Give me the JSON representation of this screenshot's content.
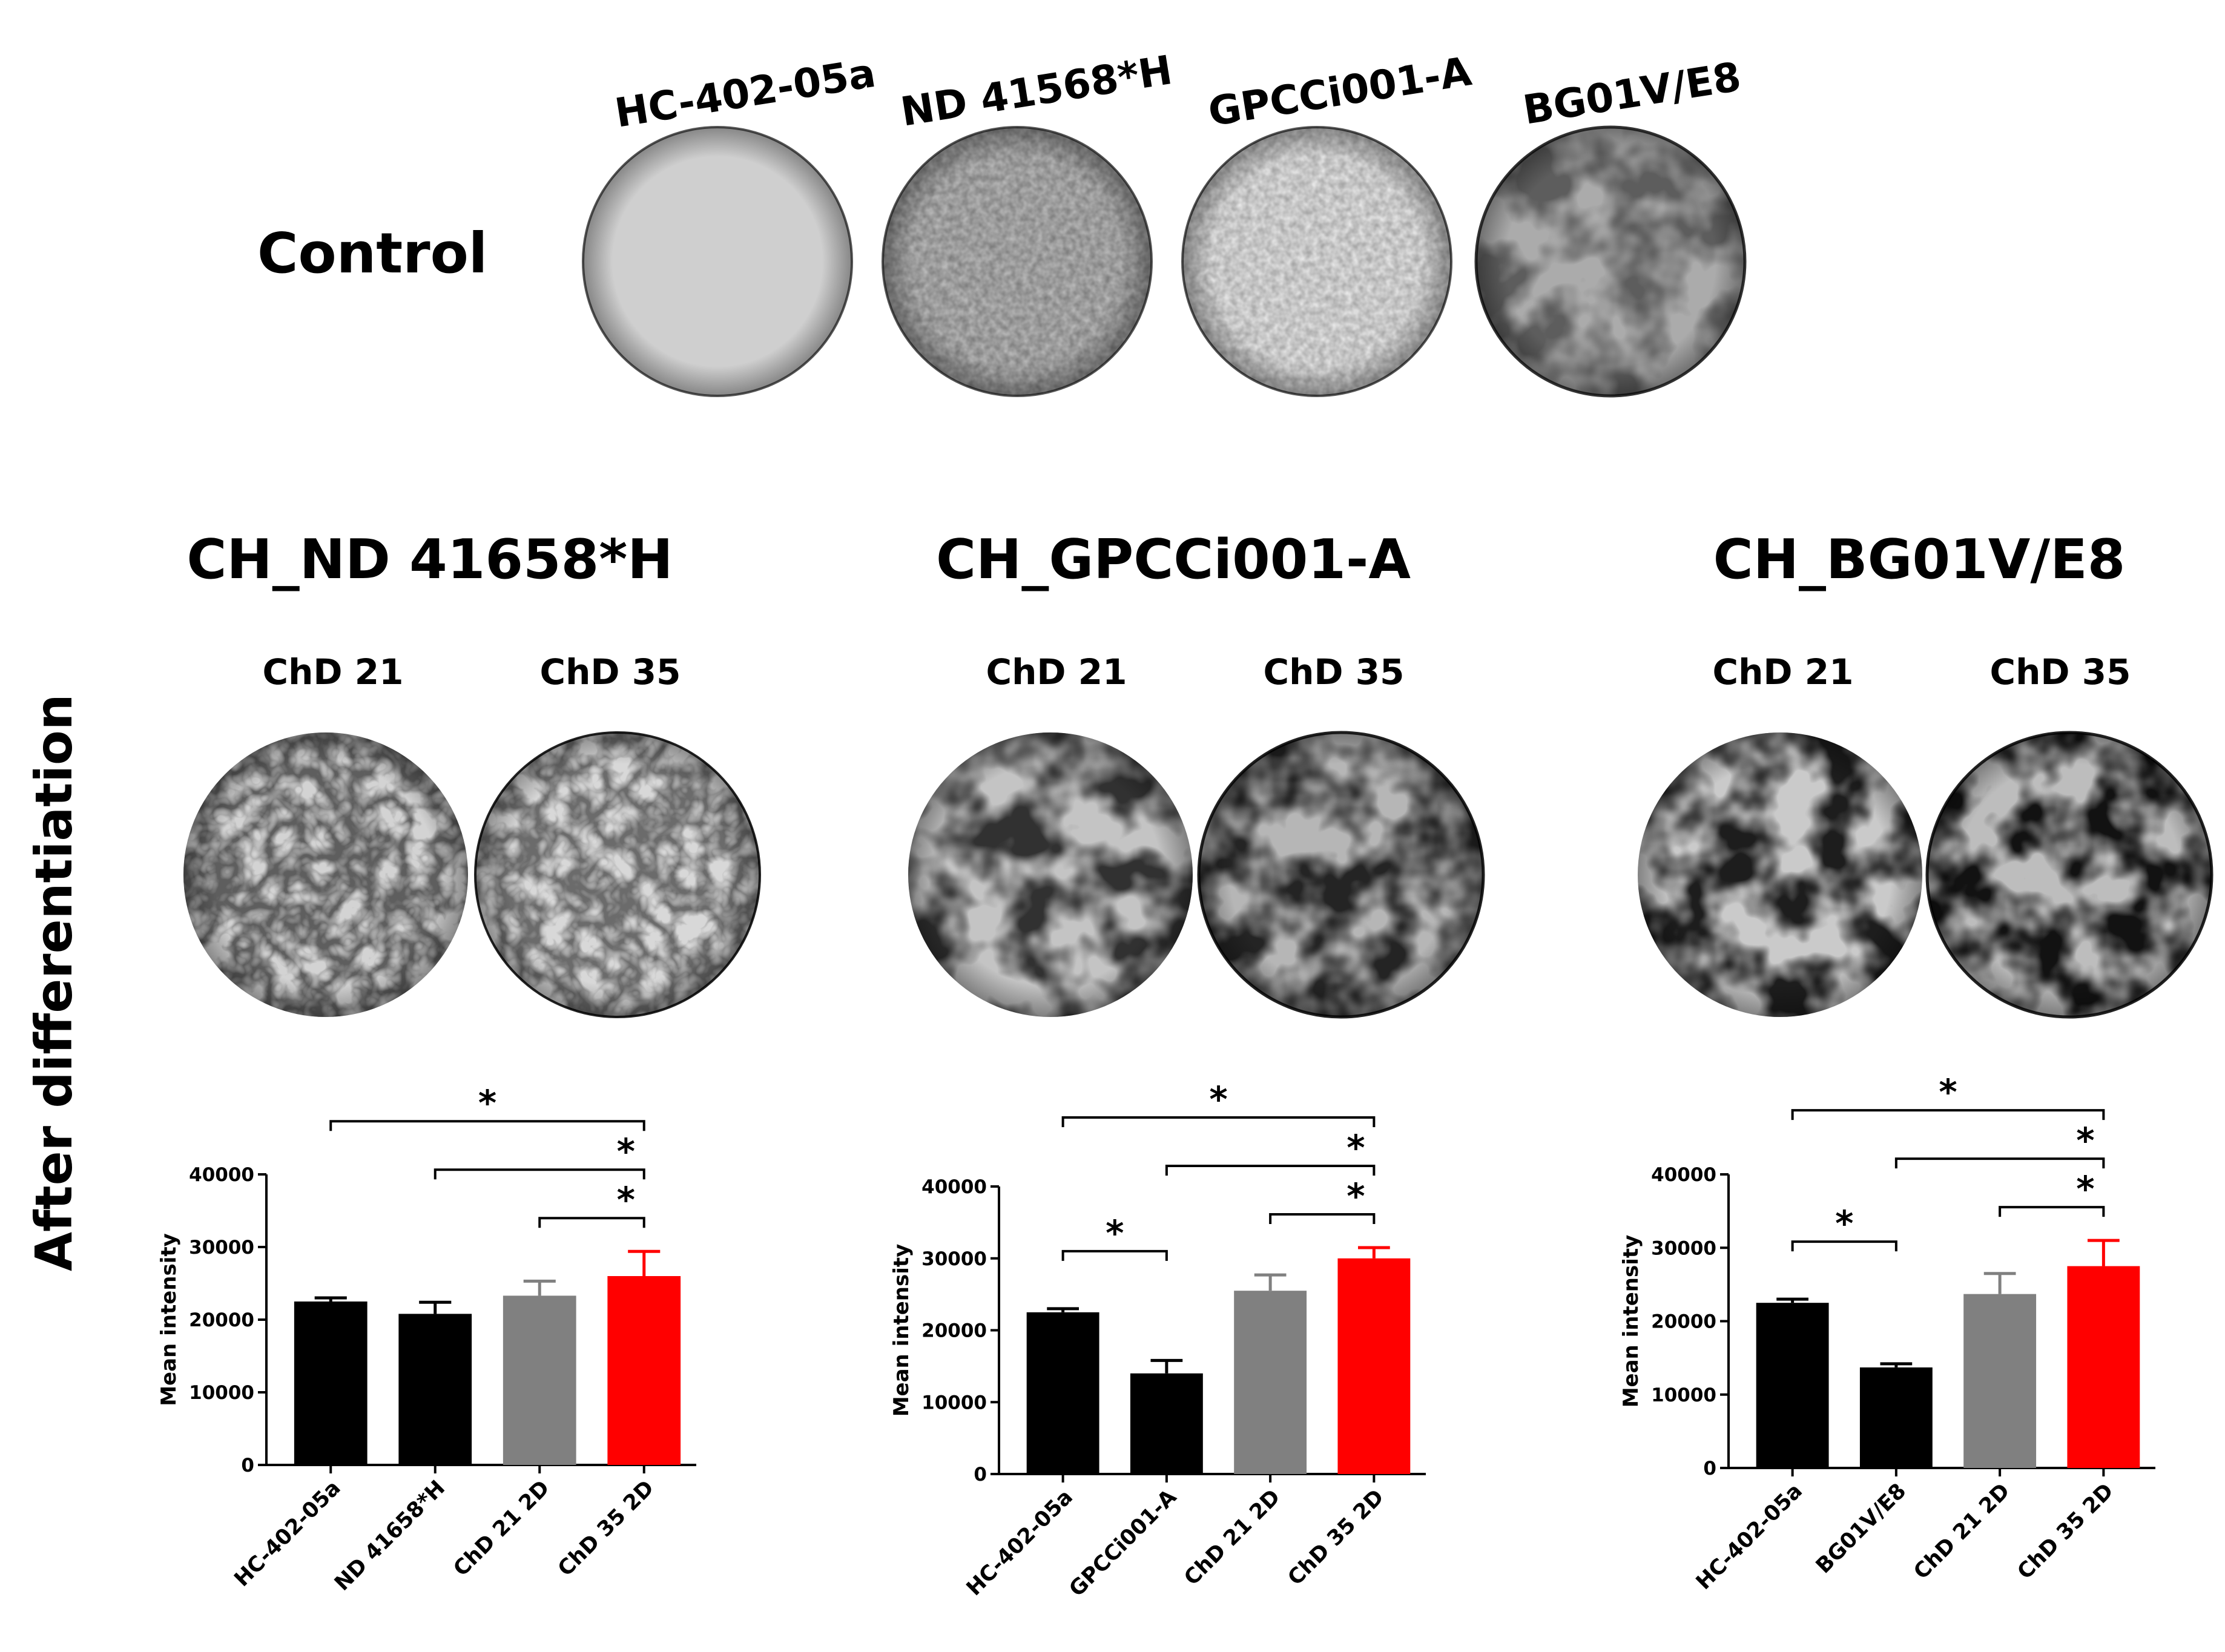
{
  "control": {
    "row_label": "Control",
    "wells": [
      {
        "label": "HC-402-05a",
        "tone": "#d0d0d0"
      },
      {
        "label": "ND 41568*H",
        "tone": "#b8b8b8"
      },
      {
        "label": "GPCCi001-A",
        "tone": "#e4e4e4"
      },
      {
        "label": "BG01V/E8",
        "tone": "#a8a8a8"
      }
    ]
  },
  "side_label": "After differentiation",
  "panels": [
    {
      "title": "CH_ND 41658*H",
      "days": [
        "ChD 21",
        "ChD 35"
      ],
      "staining": "light",
      "chart_data": {
        "type": "bar",
        "ylabel": "Mean intensity",
        "ylim": [
          0,
          40000
        ],
        "yticks": [
          0,
          10000,
          20000,
          30000,
          40000
        ],
        "categories": [
          "HC-402-05a",
          "ND 41658*H",
          "ChD 21 2D",
          "ChD 35 2D"
        ],
        "values": [
          22500,
          20800,
          23300,
          26000
        ],
        "errors": [
          500,
          1600,
          2000,
          3400
        ],
        "colors": [
          "#000000",
          "#000000",
          "#808080",
          "#ff0000"
        ],
        "significance": [
          {
            "from": 0,
            "to": 3,
            "label": "*"
          },
          {
            "from": 1,
            "to": 3,
            "label": "*"
          },
          {
            "from": 2,
            "to": 3,
            "label": "*"
          }
        ]
      }
    },
    {
      "title": "CH_GPCCi001-A",
      "days": [
        "ChD 21",
        "ChD 35"
      ],
      "staining": "medium",
      "chart_data": {
        "type": "bar",
        "ylabel": "Mean intensity",
        "ylim": [
          0,
          40000
        ],
        "yticks": [
          0,
          10000,
          20000,
          30000,
          40000
        ],
        "categories": [
          "HC-402-05a",
          "GPCCi001-A",
          "ChD 21 2D",
          "ChD 35 2D"
        ],
        "values": [
          22500,
          14000,
          25500,
          30000
        ],
        "errors": [
          500,
          1800,
          2200,
          1500
        ],
        "colors": [
          "#000000",
          "#000000",
          "#808080",
          "#ff0000"
        ],
        "significance": [
          {
            "from": 0,
            "to": 3,
            "label": "*"
          },
          {
            "from": 1,
            "to": 3,
            "label": "*"
          },
          {
            "from": 2,
            "to": 3,
            "label": "*"
          },
          {
            "from": 0,
            "to": 1,
            "label": "*"
          }
        ]
      }
    },
    {
      "title": "CH_BG01V/E8",
      "days": [
        "ChD 21",
        "ChD 35"
      ],
      "staining": "heavy",
      "chart_data": {
        "type": "bar",
        "ylabel": "Mean intensity",
        "ylim": [
          0,
          40000
        ],
        "yticks": [
          0,
          10000,
          20000,
          30000,
          40000
        ],
        "categories": [
          "HC-402-05a",
          "BG01V/E8",
          "ChD 21 2D",
          "ChD 35 2D"
        ],
        "values": [
          22500,
          13700,
          23700,
          27500
        ],
        "errors": [
          500,
          500,
          2800,
          3500
        ],
        "colors": [
          "#000000",
          "#000000",
          "#808080",
          "#ff0000"
        ],
        "significance": [
          {
            "from": 0,
            "to": 3,
            "label": "*"
          },
          {
            "from": 1,
            "to": 3,
            "label": "*"
          },
          {
            "from": 2,
            "to": 3,
            "label": "*"
          },
          {
            "from": 0,
            "to": 1,
            "label": "*"
          }
        ]
      }
    }
  ]
}
